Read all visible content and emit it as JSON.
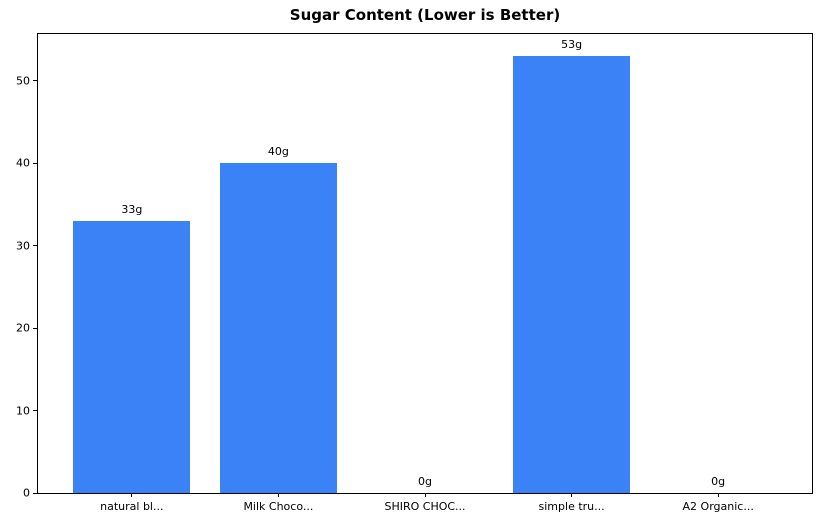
{
  "chart_data": {
    "type": "bar",
    "title": "Sugar Content (Lower is Better)",
    "categories": [
      "natural bl...",
      "Milk Choco...",
      "SHIRO CHOC...",
      "simple tru...",
      "A2 Organic..."
    ],
    "values": [
      33,
      40,
      0,
      53,
      0
    ],
    "bar_labels": [
      "33g",
      "40g",
      "0g",
      "53g",
      "0g"
    ],
    "xlabel": "",
    "ylabel": "",
    "ylim": [
      0,
      55.65
    ],
    "yticks": [
      0,
      10,
      20,
      30,
      40,
      50
    ],
    "xlim": [
      -0.64,
      4.64
    ],
    "bar_width": 0.8,
    "bar_color": "#3b82f6",
    "grid": false,
    "legend_position": "none"
  }
}
